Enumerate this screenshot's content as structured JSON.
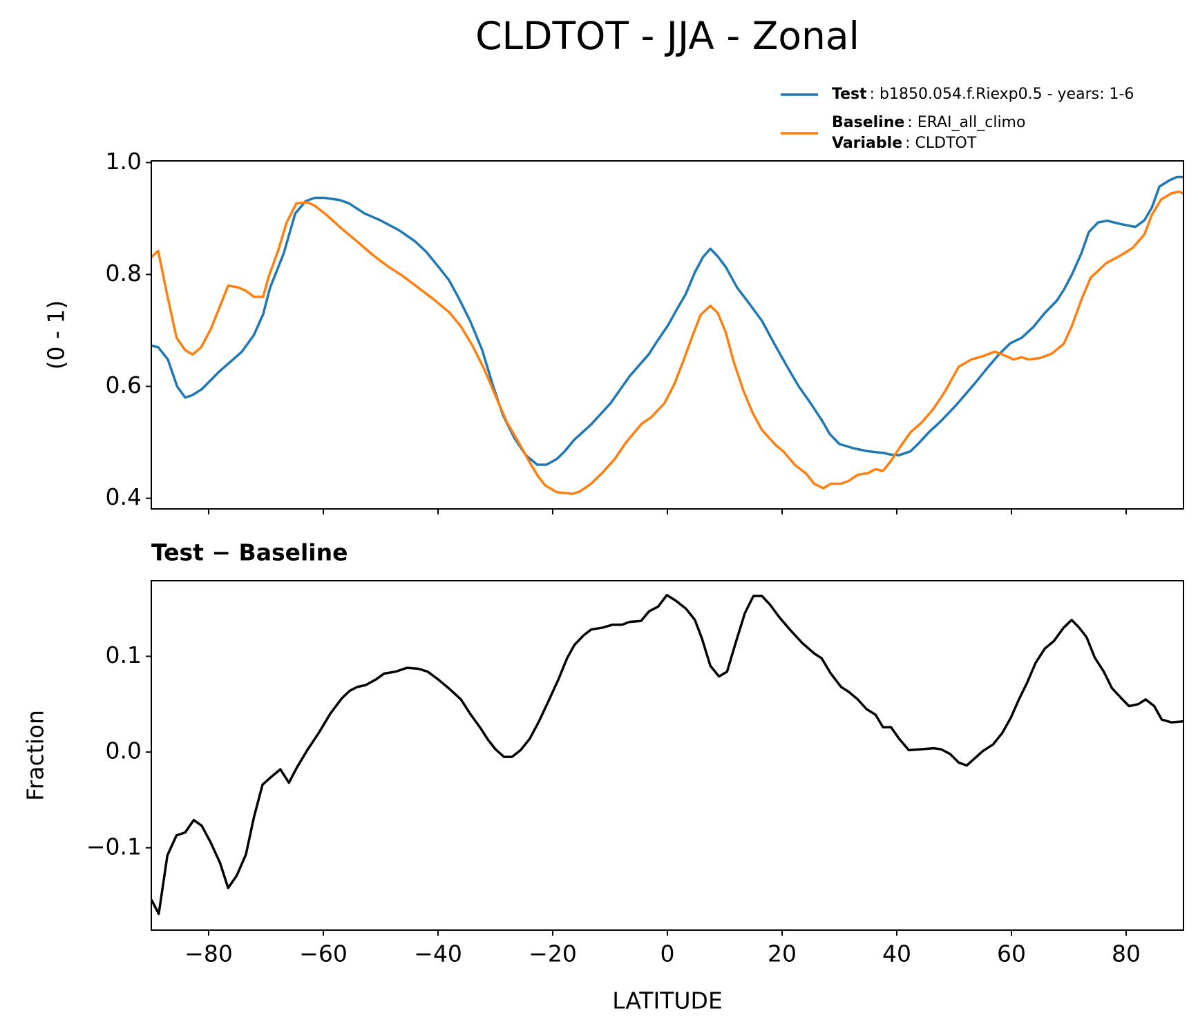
{
  "chart_data": [
    {
      "type": "line",
      "title": "CLDTOT - JJA - Zonal",
      "ylabel": "(0 - 1)",
      "legend": "upper right",
      "xlim": [
        -90,
        90
      ],
      "xticks": [
        {
          "value": -80,
          "label": "−80"
        },
        {
          "value": -60,
          "label": "−60"
        },
        {
          "value": -40,
          "label": "−40"
        },
        {
          "value": -20,
          "label": "−20"
        },
        0,
        20,
        40,
        60,
        80
      ],
      "ylim": [
        0.381,
        1.003
      ],
      "yticks": [
        0.4,
        0.6,
        0.8,
        {
          "value": 1,
          "label": "1.0"
        }
      ],
      "grid": false,
      "series": [
        {
          "name": "Test",
          "detail": ": b1850.054.f.Riexp0.5 - years: 1-6",
          "color": "#1f77b4",
          "x": [
            -90,
            -88.8,
            -87.1,
            -85.5,
            -84.1,
            -82.9,
            -81.2,
            -78.2,
            -74.2,
            -72.1,
            -70.5,
            -69.3,
            -66.9,
            -64.9,
            -63.1,
            -61.5,
            -59.8,
            -57.1,
            -55.5,
            -52.8,
            -50.1,
            -46.8,
            -44.1,
            -42.1,
            -40.1,
            -38.1,
            -36.4,
            -34.4,
            -32.3,
            -30.5,
            -28.7,
            -26.7,
            -24.7,
            -22.7,
            -21.1,
            -19.3,
            -17.9,
            -16.3,
            -13.3,
            -9.9,
            -6.6,
            -3.2,
            -1.9,
            0.1,
            1.5,
            3.2,
            4.8,
            6.2,
            7.5,
            8.8,
            10.2,
            12.2,
            14.2,
            16.5,
            18.6,
            20.9,
            22.9,
            24.9,
            26.9,
            28.3,
            30.0,
            32.6,
            35.0,
            37.7,
            39.0,
            40.4,
            42.4,
            43.7,
            45.7,
            47.7,
            50.4,
            53.5,
            55.8,
            57.8,
            59.8,
            61.8,
            63.8,
            65.8,
            67.9,
            69.1,
            70.5,
            72.2,
            73.5,
            75.1,
            76.7,
            79.1,
            81.6,
            83.2,
            84.5,
            85.8,
            87.5,
            88.8,
            90
          ],
          "values": [
            0.673,
            0.67,
            0.648,
            0.6,
            0.58,
            0.584,
            0.595,
            0.626,
            0.662,
            0.692,
            0.729,
            0.776,
            0.838,
            0.909,
            0.931,
            0.937,
            0.937,
            0.933,
            0.927,
            0.909,
            0.897,
            0.879,
            0.86,
            0.841,
            0.816,
            0.79,
            0.758,
            0.717,
            0.665,
            0.604,
            0.549,
            0.508,
            0.477,
            0.46,
            0.46,
            0.47,
            0.484,
            0.504,
            0.532,
            0.57,
            0.618,
            0.658,
            0.679,
            0.709,
            0.735,
            0.765,
            0.804,
            0.831,
            0.846,
            0.832,
            0.813,
            0.776,
            0.749,
            0.717,
            0.677,
            0.635,
            0.6,
            0.571,
            0.54,
            0.515,
            0.497,
            0.489,
            0.484,
            0.481,
            0.478,
            0.477,
            0.484,
            0.497,
            0.519,
            0.538,
            0.567,
            0.604,
            0.633,
            0.657,
            0.677,
            0.687,
            0.706,
            0.731,
            0.753,
            0.772,
            0.799,
            0.838,
            0.876,
            0.893,
            0.896,
            0.89,
            0.885,
            0.897,
            0.92,
            0.957,
            0.968,
            0.974,
            0.974
          ]
        },
        {
          "name": "Baseline",
          "detail": ": ERAI_all_climo",
          "color": "#ff7f0e",
          "x": [
            -90,
            -88.8,
            -87.2,
            -85.6,
            -84.1,
            -82.8,
            -81.3,
            -79.6,
            -76.6,
            -74.9,
            -73.5,
            -72.1,
            -70.5,
            -69.5,
            -67.9,
            -66.4,
            -64.7,
            -62.8,
            -61.5,
            -59.5,
            -56.8,
            -54.1,
            -51.4,
            -48.8,
            -46.1,
            -43.4,
            -40.7,
            -38.0,
            -36.0,
            -34.0,
            -32.0,
            -30.0,
            -28.0,
            -26.0,
            -24.0,
            -22.6,
            -21.3,
            -19.3,
            -16.6,
            -15.3,
            -13.3,
            -11.3,
            -9.2,
            -7.2,
            -4.5,
            -2.8,
            -0.5,
            1.2,
            2.8,
            4.4,
            5.8,
            7.5,
            8.8,
            10.2,
            11.5,
            13.3,
            14.9,
            16.5,
            18.9,
            20.2,
            22.2,
            24.2,
            25.6,
            27.2,
            28.5,
            30.3,
            31.6,
            33.2,
            35.0,
            36.3,
            37.6,
            39.0,
            40.6,
            42.4,
            44.4,
            46.4,
            48.4,
            50.8,
            53.0,
            55.0,
            57.1,
            58.4,
            60.4,
            61.7,
            63.1,
            65.1,
            67.1,
            69.1,
            70.5,
            72.2,
            73.8,
            76.5,
            79.2,
            81.2,
            83.2,
            84.5,
            86.1,
            87.9,
            89.2,
            90
          ],
          "values": [
            0.831,
            0.842,
            0.762,
            0.687,
            0.665,
            0.657,
            0.67,
            0.703,
            0.78,
            0.777,
            0.771,
            0.76,
            0.76,
            0.797,
            0.842,
            0.893,
            0.927,
            0.929,
            0.923,
            0.907,
            0.882,
            0.859,
            0.835,
            0.815,
            0.797,
            0.776,
            0.755,
            0.732,
            0.707,
            0.673,
            0.632,
            0.584,
            0.536,
            0.501,
            0.464,
            0.44,
            0.423,
            0.411,
            0.408,
            0.412,
            0.426,
            0.446,
            0.47,
            0.5,
            0.533,
            0.545,
            0.57,
            0.604,
            0.646,
            0.691,
            0.728,
            0.744,
            0.731,
            0.696,
            0.646,
            0.591,
            0.552,
            0.522,
            0.495,
            0.484,
            0.46,
            0.444,
            0.426,
            0.418,
            0.426,
            0.426,
            0.431,
            0.442,
            0.445,
            0.452,
            0.449,
            0.467,
            0.492,
            0.518,
            0.536,
            0.56,
            0.591,
            0.635,
            0.648,
            0.654,
            0.662,
            0.657,
            0.648,
            0.652,
            0.648,
            0.651,
            0.659,
            0.676,
            0.707,
            0.755,
            0.794,
            0.82,
            0.835,
            0.848,
            0.872,
            0.907,
            0.934,
            0.945,
            0.948,
            0.945
          ]
        }
      ],
      "legend_extra": {
        "name": "Variable",
        "detail": ": CLDTOT"
      }
    },
    {
      "type": "line",
      "title": "Test − Baseline",
      "ylabel": "Fraction",
      "xlabel": "LATITUDE",
      "color": "#000000",
      "xlim": [
        -90,
        90
      ],
      "xticks": [
        {
          "value": -80,
          "label": "−80"
        },
        {
          "value": -60,
          "label": "−60"
        },
        {
          "value": -40,
          "label": "−40"
        },
        {
          "value": -20,
          "label": "−20"
        },
        0,
        20,
        40,
        60,
        80
      ],
      "ylim": [
        -0.186,
        0.179
      ],
      "yticks": [
        {
          "value": -0.1,
          "label": "−0.1"
        },
        {
          "value": 0,
          "label": "0.0"
        },
        0.1
      ],
      "grid": false,
      "x": [
        -90,
        -88.7,
        -87.2,
        -85.6,
        -84.1,
        -82.6,
        -81.2,
        -79.6,
        -78.0,
        -76.6,
        -75.1,
        -73.5,
        -72.1,
        -70.6,
        -69.1,
        -67.5,
        -66.0,
        -64.6,
        -62.8,
        -60.8,
        -58.8,
        -56.8,
        -55.4,
        -54.1,
        -52.6,
        -50.8,
        -49.4,
        -47.4,
        -45.4,
        -43.4,
        -41.8,
        -40.0,
        -38.0,
        -36.0,
        -34.4,
        -32.7,
        -31.3,
        -30.0,
        -28.5,
        -27.1,
        -25.6,
        -24.0,
        -22.4,
        -20.6,
        -19.0,
        -17.5,
        -16.2,
        -14.6,
        -13.3,
        -11.3,
        -9.6,
        -7.9,
        -6.6,
        -4.6,
        -3.2,
        -1.6,
        -0.1,
        1.5,
        3.2,
        4.8,
        6.0,
        7.5,
        9.0,
        10.4,
        11.9,
        13.5,
        15.0,
        16.5,
        17.9,
        19.5,
        21.5,
        23.5,
        25.6,
        26.9,
        28.5,
        30.3,
        31.6,
        33.2,
        34.7,
        36.3,
        37.6,
        39.0,
        40.4,
        42.1,
        44.4,
        46.4,
        47.7,
        49.3,
        50.8,
        52.2,
        53.7,
        55.0,
        56.8,
        58.4,
        59.9,
        61.3,
        62.7,
        64.2,
        65.8,
        67.4,
        69.1,
        70.5,
        71.8,
        73.1,
        74.5,
        76.1,
        77.5,
        79.2,
        80.5,
        82.1,
        83.4,
        84.9,
        86.2,
        87.9,
        90
      ],
      "values": [
        -0.154,
        -0.169,
        -0.108,
        -0.087,
        -0.084,
        -0.071,
        -0.077,
        -0.095,
        -0.116,
        -0.142,
        -0.129,
        -0.107,
        -0.068,
        -0.034,
        -0.026,
        -0.018,
        -0.032,
        -0.016,
        0.002,
        0.02,
        0.04,
        0.056,
        0.064,
        0.068,
        0.07,
        0.076,
        0.082,
        0.084,
        0.088,
        0.087,
        0.084,
        0.076,
        0.066,
        0.055,
        0.04,
        0.026,
        0.013,
        0.003,
        -0.005,
        -0.005,
        0.002,
        0.014,
        0.032,
        0.055,
        0.076,
        0.098,
        0.112,
        0.122,
        0.128,
        0.13,
        0.133,
        0.133,
        0.136,
        0.137,
        0.147,
        0.152,
        0.164,
        0.158,
        0.15,
        0.138,
        0.119,
        0.09,
        0.079,
        0.084,
        0.114,
        0.145,
        0.163,
        0.163,
        0.154,
        0.141,
        0.127,
        0.114,
        0.103,
        0.098,
        0.082,
        0.068,
        0.063,
        0.055,
        0.045,
        0.039,
        0.026,
        0.026,
        0.014,
        0.002,
        0.003,
        0.004,
        0.003,
        -0.002,
        -0.011,
        -0.014,
        -0.006,
        0.001,
        0.008,
        0.02,
        0.036,
        0.055,
        0.072,
        0.093,
        0.108,
        0.116,
        0.13,
        0.138,
        0.13,
        0.12,
        0.099,
        0.084,
        0.067,
        0.056,
        0.048,
        0.05,
        0.055,
        0.048,
        0.034,
        0.031,
        0.032
      ]
    }
  ]
}
